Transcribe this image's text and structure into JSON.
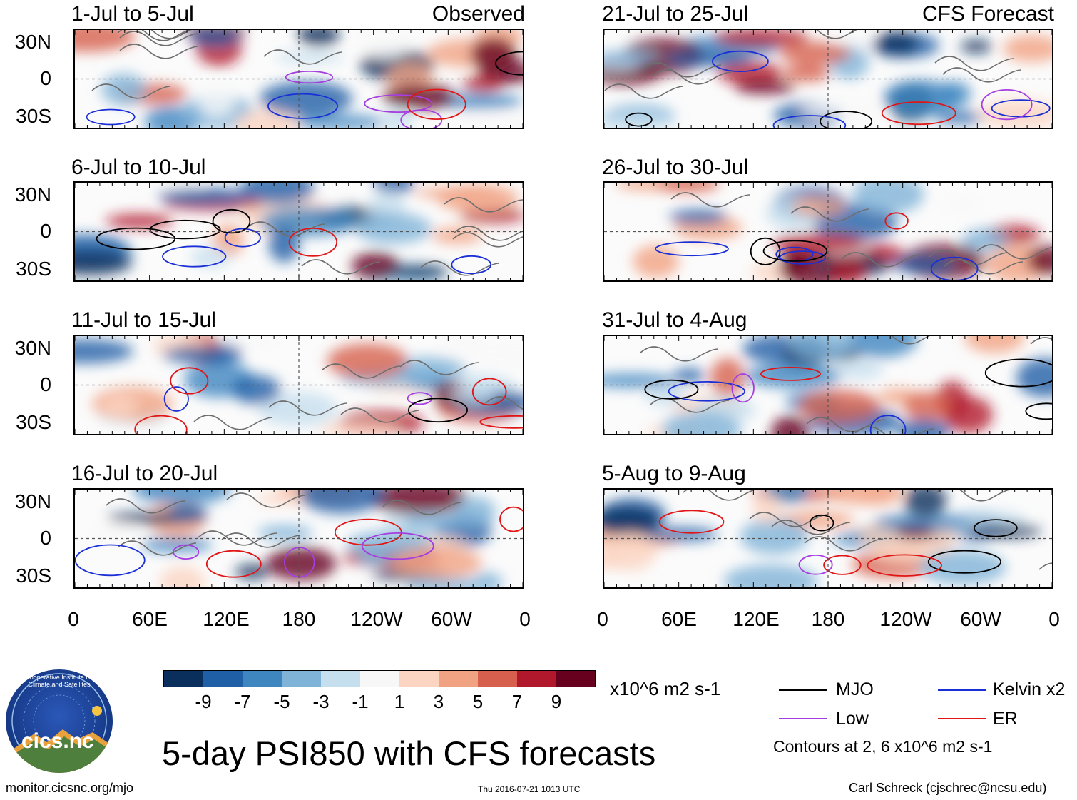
{
  "observed_label": "Observed",
  "forecast_label": "CFS Forecast",
  "panels_left": [
    {
      "title": "1-Jul to 5-Jul"
    },
    {
      "title": "6-Jul to 10-Jul"
    },
    {
      "title": "11-Jul to 15-Jul"
    },
    {
      "title": "16-Jul to 20-Jul"
    }
  ],
  "panels_right": [
    {
      "title": "21-Jul to 25-Jul"
    },
    {
      "title": "26-Jul to 30-Jul"
    },
    {
      "title": "31-Jul to 4-Aug"
    },
    {
      "title": "5-Aug to 9-Aug"
    }
  ],
  "lat_labels": [
    "30N",
    "0",
    "30S"
  ],
  "lon_labels": [
    "0",
    "60E",
    "120E",
    "180",
    "120W",
    "60W",
    "0"
  ],
  "colorbar": {
    "labels": [
      "-9",
      "-7",
      "-5",
      "-3",
      "-1",
      "1",
      "3",
      "5",
      "7",
      "9"
    ],
    "colors": [
      "#0b2f5c",
      "#1f5fa6",
      "#3d86c0",
      "#7fb3d8",
      "#c6dfee",
      "#f7f7f7",
      "#fbd5c2",
      "#f1a283",
      "#d6604d",
      "#b2182b",
      "#67001f"
    ],
    "units": "x10^6 m2 s-1"
  },
  "legend": {
    "items": [
      {
        "label": "MJO",
        "color": "#000000"
      },
      {
        "label": "Kelvin x2",
        "color": "#1a2fd6"
      },
      {
        "label": "Low",
        "color": "#a63de0"
      },
      {
        "label": "ER",
        "color": "#e01616"
      }
    ],
    "contours_note": "Contours at 2, 6 x10^6 m2 s-1"
  },
  "main_title": "5-day PSI850 with CFS forecasts",
  "logo_text": "cics.nc",
  "logo_ring_text": "Cooperative Institute for Climate and Satellites",
  "url": "monitor.cicsnc.org/mjo",
  "timestamp": "Thu 2016-07-21 1013 UTC",
  "author": "Carl Schreck (cjschrec@ncsu.edu)"
}
